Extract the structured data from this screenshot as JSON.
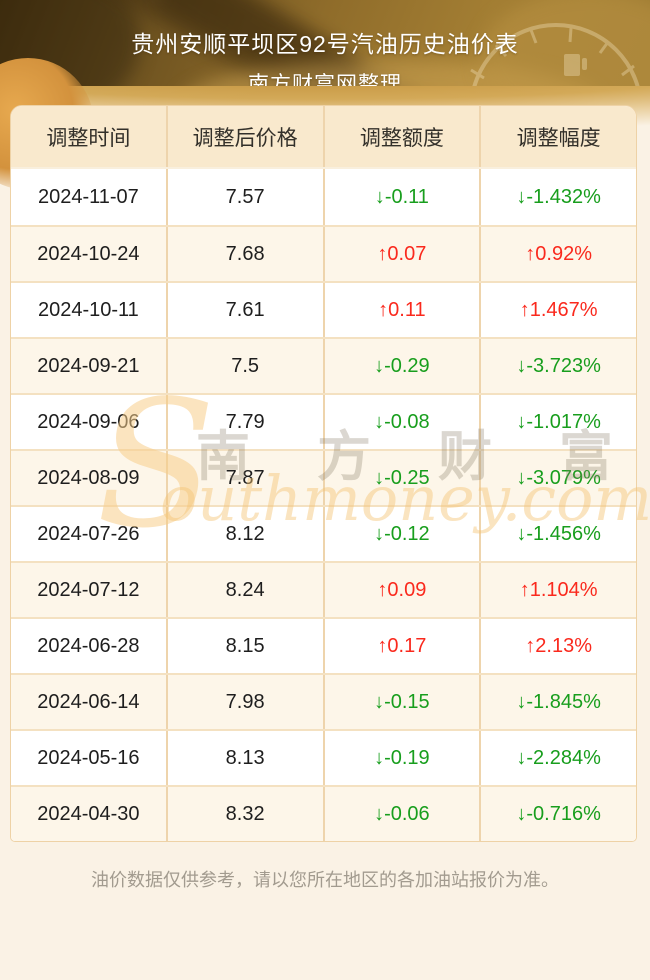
{
  "banner": {
    "title_line1": "贵州安顺平坝区92号汽油历史油价表",
    "title_line2": "南方财富网整理"
  },
  "chart_data": {
    "type": "table",
    "title": "贵州安顺平坝区92号汽油历史油价表",
    "subtitle": "南方财富网整理",
    "columns": [
      "调整时间",
      "调整后价格",
      "调整额度",
      "调整幅度"
    ],
    "rows": [
      {
        "date": "2024-11-07",
        "price": "7.57",
        "change": "-0.11",
        "pct": "-1.432%",
        "dir": "down"
      },
      {
        "date": "2024-10-24",
        "price": "7.68",
        "change": "0.07",
        "pct": "0.92%",
        "dir": "up"
      },
      {
        "date": "2024-10-11",
        "price": "7.61",
        "change": "0.11",
        "pct": "1.467%",
        "dir": "up"
      },
      {
        "date": "2024-09-21",
        "price": "7.5",
        "change": "-0.29",
        "pct": "-3.723%",
        "dir": "down"
      },
      {
        "date": "2024-09-06",
        "price": "7.79",
        "change": "-0.08",
        "pct": "-1.017%",
        "dir": "down"
      },
      {
        "date": "2024-08-09",
        "price": "7.87",
        "change": "-0.25",
        "pct": "-3.079%",
        "dir": "down"
      },
      {
        "date": "2024-07-26",
        "price": "8.12",
        "change": "-0.12",
        "pct": "-1.456%",
        "dir": "down"
      },
      {
        "date": "2024-07-12",
        "price": "8.24",
        "change": "0.09",
        "pct": "1.104%",
        "dir": "up"
      },
      {
        "date": "2024-06-28",
        "price": "8.15",
        "change": "0.17",
        "pct": "2.13%",
        "dir": "up"
      },
      {
        "date": "2024-06-14",
        "price": "7.98",
        "change": "-0.15",
        "pct": "-1.845%",
        "dir": "down"
      },
      {
        "date": "2024-05-16",
        "price": "8.13",
        "change": "-0.19",
        "pct": "-2.284%",
        "dir": "down"
      },
      {
        "date": "2024-04-30",
        "price": "8.32",
        "change": "-0.06",
        "pct": "-0.716%",
        "dir": "down"
      }
    ],
    "up_arrow": "↑",
    "down_arrow": "↓",
    "colors": {
      "up": "#fa291d",
      "down": "#189e1d",
      "header_bg": "#f9e9cd",
      "row_alt_bg": "#fdf6e9",
      "border": "#eed4ac"
    }
  },
  "watermark": {
    "s": "S",
    "cn": "南 方 财 富 网",
    "en": "outhmoney.com"
  },
  "footer": {
    "note": "油价数据仅供参考，请以您所在地区的各加油站报价为准。"
  }
}
